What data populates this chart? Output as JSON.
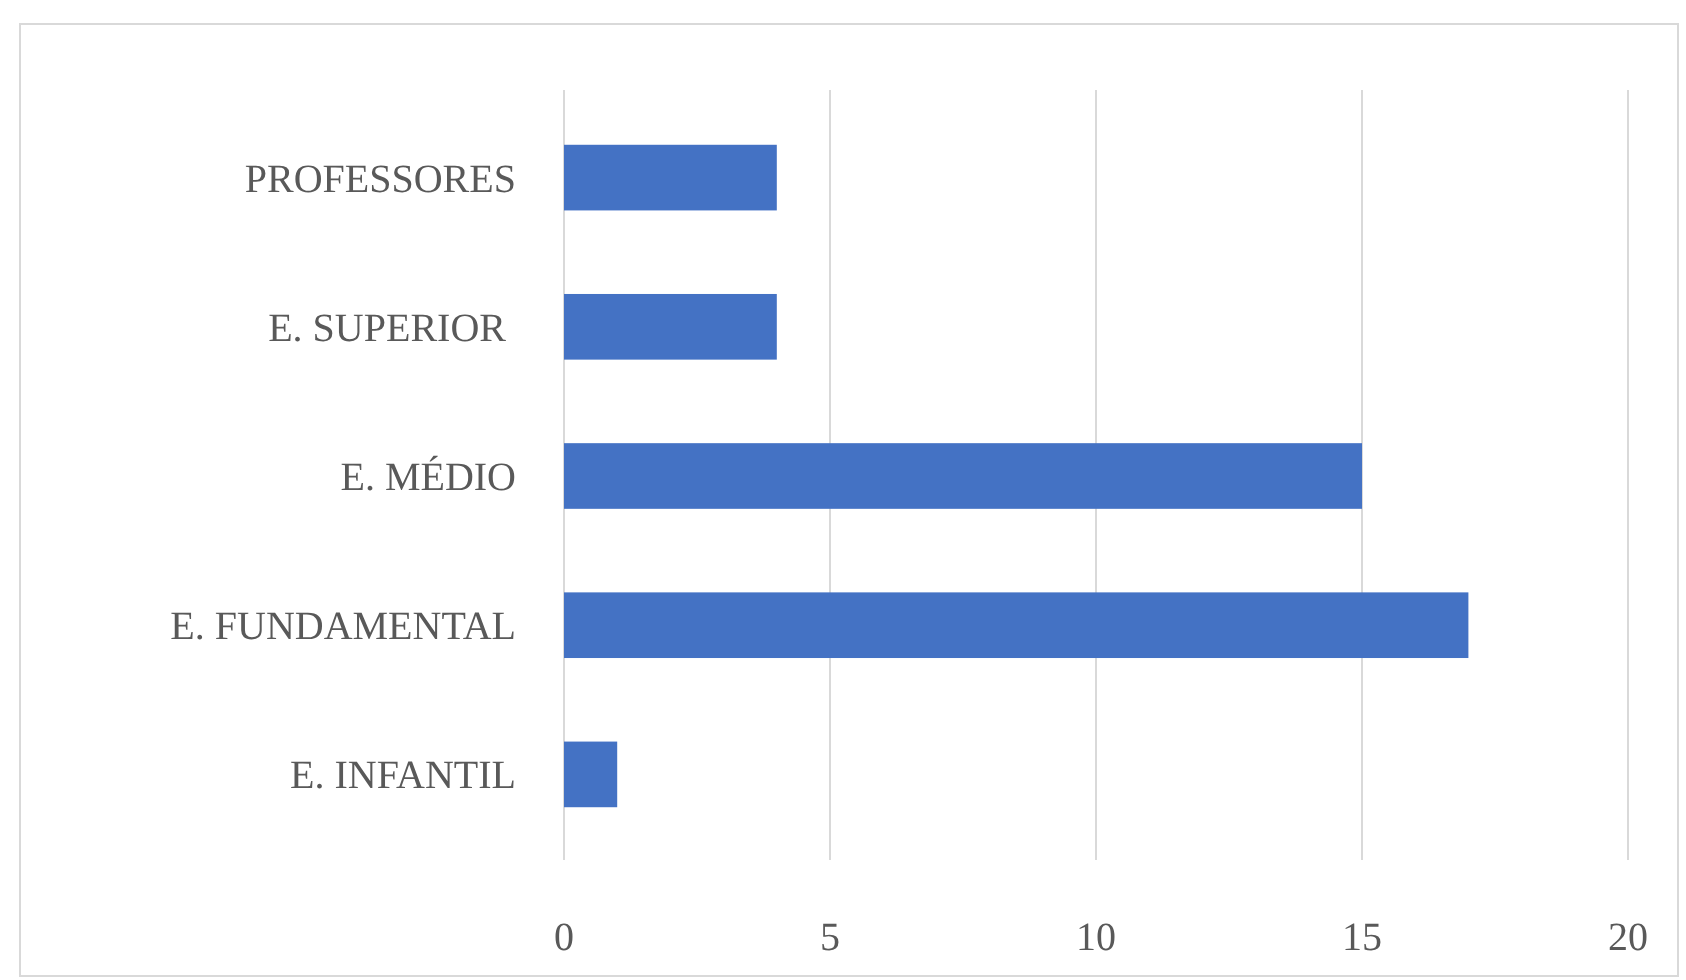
{
  "chart_data": {
    "type": "bar",
    "orientation": "horizontal",
    "categories": [
      "PROFESSORES",
      "E. SUPERIOR ",
      "E. MÉDIO",
      "E. FUNDAMENTAL",
      "E. INFANTIL"
    ],
    "values": [
      4,
      4,
      15,
      17,
      1
    ],
    "color": "#4472c4",
    "xlim": [
      0,
      20
    ],
    "xticks": [
      0,
      5,
      10,
      15,
      20
    ],
    "grid": "x"
  }
}
